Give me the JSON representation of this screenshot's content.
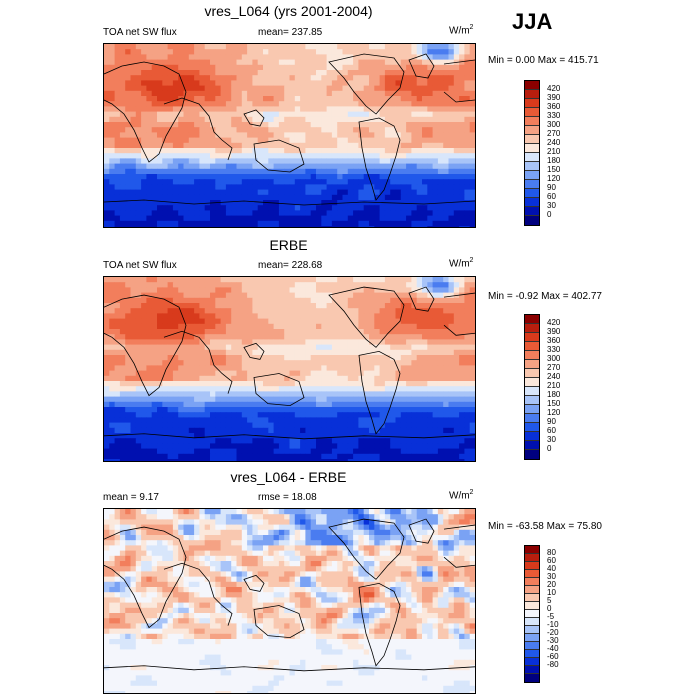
{
  "season": "JJA",
  "colors": {
    "abs": [
      "#00007f",
      "#0010b0",
      "#0830d8",
      "#2058ea",
      "#4a7cf0",
      "#7aa2f4",
      "#a8c4f8",
      "#d8e6fb",
      "#fbe8dc",
      "#f9c8b0",
      "#f5a284",
      "#f27e5c",
      "#e85a36",
      "#d83a1c",
      "#b81e0e",
      "#8b0000"
    ],
    "diff": [
      "#00007f",
      "#0010b0",
      "#0830d8",
      "#2058ea",
      "#4a7cf0",
      "#7aa2f4",
      "#a8c4f8",
      "#d8e6fb",
      "#f4f6fc",
      "#fbe8dc",
      "#f9c8b0",
      "#f5a284",
      "#f27e5c",
      "#e85a36",
      "#d83a1c",
      "#b81e0e",
      "#8b0000"
    ]
  },
  "chart_data": [
    {
      "type": "heatmap",
      "title": "vres_L064 (yrs 2001-2004)",
      "left_label": "TOA net SW flux",
      "center_label": "mean= 237.85",
      "units": "W/m",
      "units_sup": "2",
      "minmax": "Min =   0.00 Max = 415.71",
      "stats": {
        "mean": 237.85,
        "min": 0.0,
        "max": 415.71
      },
      "levels": [
        "420",
        "390",
        "360",
        "330",
        "300",
        "270",
        "240",
        "210",
        "180",
        "150",
        "120",
        "90",
        "60",
        "30",
        "0"
      ],
      "seed": 3
    },
    {
      "type": "heatmap",
      "title": "ERBE",
      "left_label": "TOA net SW flux",
      "center_label": "mean= 228.68",
      "units": "W/m",
      "units_sup": "2",
      "minmax": "Min =  -0.92 Max = 402.77",
      "stats": {
        "mean": 228.68,
        "min": -0.92,
        "max": 402.77
      },
      "levels": [
        "420",
        "390",
        "360",
        "330",
        "300",
        "270",
        "240",
        "210",
        "180",
        "150",
        "120",
        "90",
        "60",
        "30",
        "0"
      ],
      "seed": 7
    },
    {
      "type": "heatmap",
      "title": "vres_L064 - ERBE",
      "left_label": "mean =   9.17",
      "center_label": "rmse =  18.08",
      "units": "W/m",
      "units_sup": "2",
      "minmax": "Min = -63.58 Max =  75.80",
      "stats": {
        "mean": 9.17,
        "rmse": 18.08,
        "min": -63.58,
        "max": 75.8
      },
      "levels": [
        "80",
        "60",
        "40",
        "30",
        "20",
        "10",
        "5",
        "0",
        "-5",
        "-10",
        "-20",
        "-30",
        "-40",
        "-60",
        "-80"
      ],
      "seed": 11
    }
  ]
}
